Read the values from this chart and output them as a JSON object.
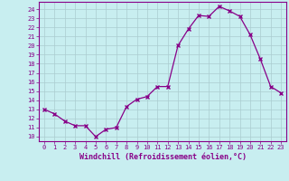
{
  "x": [
    0,
    1,
    2,
    3,
    4,
    5,
    6,
    7,
    8,
    9,
    10,
    11,
    12,
    13,
    14,
    15,
    16,
    17,
    18,
    19,
    20,
    21,
    22,
    23
  ],
  "y": [
    13.0,
    12.5,
    11.7,
    11.2,
    11.2,
    10.0,
    10.8,
    11.0,
    13.3,
    14.1,
    14.4,
    15.5,
    15.5,
    20.0,
    21.8,
    23.3,
    23.2,
    24.3,
    23.8,
    23.2,
    21.2,
    18.5,
    15.5,
    14.8
  ],
  "line_color": "#880088",
  "marker": "x",
  "marker_size": 3.0,
  "background_color": "#c8eef0",
  "grid_color": "#aaccd0",
  "xlabel": "Windchill (Refroidissement éolien,°C)",
  "ylabel": "",
  "xlim": [
    -0.5,
    23.5
  ],
  "ylim": [
    9.5,
    24.8
  ],
  "yticks": [
    10,
    11,
    12,
    13,
    14,
    15,
    16,
    17,
    18,
    19,
    20,
    21,
    22,
    23,
    24
  ],
  "xticks": [
    0,
    1,
    2,
    3,
    4,
    5,
    6,
    7,
    8,
    9,
    10,
    11,
    12,
    13,
    14,
    15,
    16,
    17,
    18,
    19,
    20,
    21,
    22,
    23
  ],
  "tick_fontsize": 5.0,
  "xlabel_fontsize": 6.0,
  "label_color": "#880088",
  "spine_color": "#880088"
}
